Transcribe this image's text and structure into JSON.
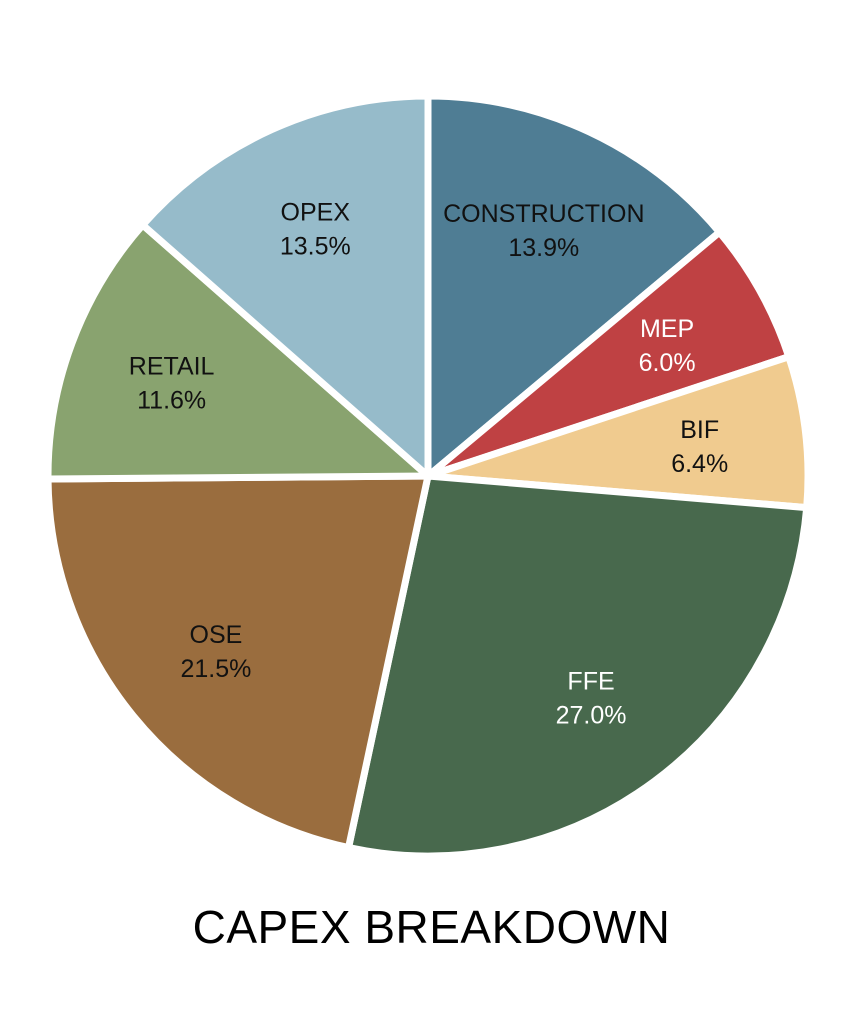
{
  "chart_data": {
    "type": "pie",
    "title": "CAPEX BREAKDOWN",
    "slices": [
      {
        "label": "CONSTRUCTION",
        "value": 13.9,
        "display": "13.9%",
        "color": "#4f7d94",
        "text_color": "#111111"
      },
      {
        "label": "MEP",
        "value": 6.0,
        "display": "6.0%",
        "color": "#bf4143",
        "text_color": "#ffffff"
      },
      {
        "label": "BIF",
        "value": 6.4,
        "display": "6.4%",
        "color": "#f0cb8f",
        "text_color": "#111111"
      },
      {
        "label": "FFE",
        "value": 27.0,
        "display": "27.0%",
        "color": "#48694d",
        "text_color": "#ffffff"
      },
      {
        "label": "OSE",
        "value": 21.5,
        "display": "21.5%",
        "color": "#9a6d3e",
        "text_color": "#111111"
      },
      {
        "label": "RETAIL",
        "value": 11.6,
        "display": "11.6%",
        "color": "#89a36f",
        "text_color": "#111111"
      },
      {
        "label": "OPEX",
        "value": 13.5,
        "display": "13.5%",
        "color": "#96bbca",
        "text_color": "#111111"
      }
    ]
  }
}
